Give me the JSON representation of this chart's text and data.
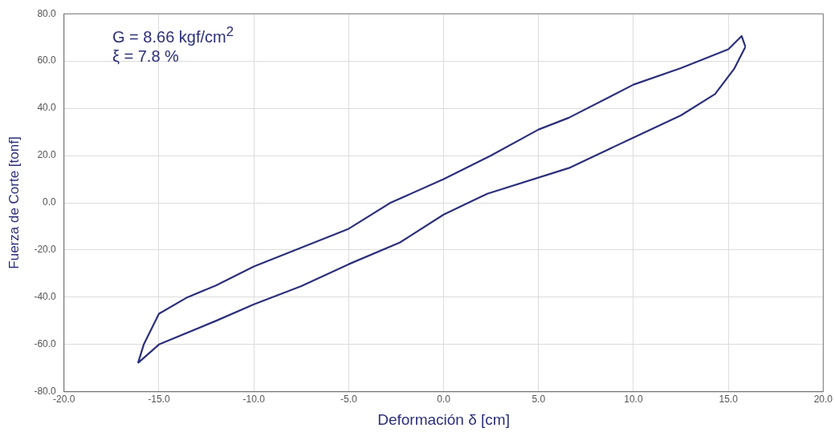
{
  "chart_data": {
    "type": "line",
    "xlabel": "Deformación δ [cm]",
    "ylabel": "Fuerza de Corte [tonf]",
    "xlim": [
      -20,
      20
    ],
    "ylim": [
      -80,
      80
    ],
    "xticks": [
      {
        "value": -20,
        "label": "-20.0"
      },
      {
        "value": -15,
        "label": "-15.0"
      },
      {
        "value": -10,
        "label": "-10.0"
      },
      {
        "value": -5,
        "label": "-5.0"
      },
      {
        "value": 0,
        "label": "0.0"
      },
      {
        "value": 5,
        "label": "5.0"
      },
      {
        "value": 10,
        "label": "10.0"
      },
      {
        "value": 15,
        "label": "15.0"
      },
      {
        "value": 20,
        "label": "20.0"
      }
    ],
    "yticks": [
      {
        "value": -80,
        "label": "-80.0"
      },
      {
        "value": -60,
        "label": "-60.0"
      },
      {
        "value": -40,
        "label": "-40.0"
      },
      {
        "value": -20,
        "label": "-20.0"
      },
      {
        "value": 0,
        "label": "0.0"
      },
      {
        "value": 20,
        "label": "20.0"
      },
      {
        "value": 40,
        "label": "40.0"
      },
      {
        "value": 60,
        "label": "60.0"
      },
      {
        "value": 80,
        "label": "80.0"
      }
    ],
    "grid": true,
    "legend": false,
    "marker": "none",
    "line_style": "solid",
    "annotations": [
      "G = 8.66 kgf/cm$^{2}$",
      "ξ = 7.8 %"
    ],
    "series": [
      {
        "color": "#2b2f7a",
        "x": [
          -16.1,
          -15.8,
          -15,
          -13.5,
          -12,
          -10,
          -7.5,
          -5,
          -2.8,
          0,
          2.5,
          5,
          6.6,
          10,
          12.5,
          15,
          15.7,
          15.9
        ],
        "values": [
          -67.8,
          -60,
          -47,
          -40,
          -35,
          -27,
          -19,
          -11,
          0,
          10,
          20,
          31,
          36,
          50,
          57,
          65,
          70.6,
          66
        ]
      },
      {
        "color": "#2b2f7a",
        "x": [
          -16.1,
          -15,
          -12,
          -10,
          -7.5,
          -5,
          -2.3,
          0,
          1.3,
          2.3,
          6.6,
          10,
          12.5,
          14.3,
          15.3,
          15.9
        ],
        "values": [
          -67.8,
          -60,
          -50,
          -43,
          -35.3,
          -26,
          -16.8,
          -5,
          0,
          3.8,
          14.7,
          27.6,
          37,
          46,
          56.6,
          66
        ]
      }
    ]
  }
}
